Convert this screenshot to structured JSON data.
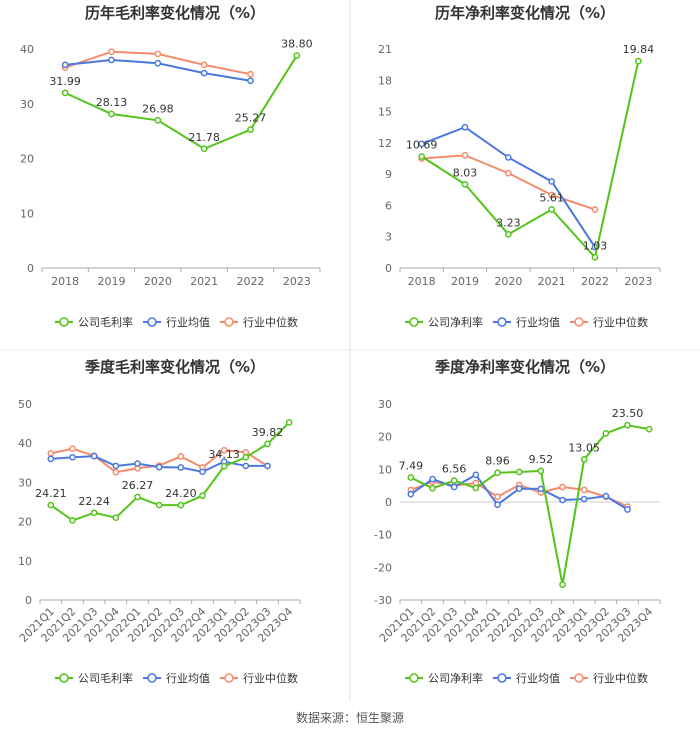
{
  "source": "数据来源：恒生聚源",
  "colors": {
    "company": "#52c41a",
    "avg": "#4a78e0",
    "median": "#f58b6a",
    "axis": "#aaaaaa",
    "divider": "#dddddd"
  },
  "chart_data": [
    {
      "type": "line",
      "title": "历年毛利率变化情况（%）",
      "categories": [
        "2018",
        "2019",
        "2020",
        "2021",
        "2022",
        "2023"
      ],
      "ylim": [
        0,
        40
      ],
      "yticks": [
        0,
        10,
        20,
        30,
        40
      ],
      "series": [
        {
          "name": "公司毛利率",
          "values": [
            31.99,
            28.13,
            26.98,
            21.78,
            25.27,
            38.8
          ]
        },
        {
          "name": "行业均值",
          "values": [
            37.1,
            38.0,
            37.4,
            35.6,
            34.2,
            null
          ]
        },
        {
          "name": "行业中位数",
          "values": [
            36.6,
            39.5,
            39.1,
            37.1,
            35.4,
            null
          ]
        }
      ],
      "labels": [
        "31.99",
        "28.13",
        "26.98",
        "21.78",
        "25.27",
        "38.80"
      ],
      "legend": [
        "公司毛利率",
        "行业均值",
        "行业中位数"
      ]
    },
    {
      "type": "line",
      "title": "历年净利率变化情况（%）",
      "categories": [
        "2018",
        "2019",
        "2020",
        "2021",
        "2022",
        "2023"
      ],
      "ylim": [
        0,
        21
      ],
      "yticks": [
        0,
        3,
        6,
        9,
        12,
        15,
        18,
        21
      ],
      "series": [
        {
          "name": "公司净利率",
          "values": [
            10.69,
            8.03,
            3.23,
            5.61,
            1.03,
            19.84
          ]
        },
        {
          "name": "行业均值",
          "values": [
            11.9,
            13.5,
            10.6,
            8.3,
            2.0,
            null
          ]
        },
        {
          "name": "行业中位数",
          "values": [
            10.5,
            10.8,
            9.1,
            7.0,
            5.6,
            null
          ]
        }
      ],
      "labels": [
        "10.69",
        "8.03",
        "3.23",
        "5.61",
        "1.03",
        "19.84"
      ],
      "legend": [
        "公司净利率",
        "行业均值",
        "行业中位数"
      ]
    },
    {
      "type": "line",
      "title": "季度毛利率变化情况（%）",
      "categories": [
        "2021Q1",
        "2021Q2",
        "2021Q3",
        "2021Q4",
        "2022Q1",
        "2022Q2",
        "2022Q3",
        "2022Q4",
        "2023Q1",
        "2023Q2",
        "2023Q3",
        "2023Q4"
      ],
      "ylim": [
        0,
        50
      ],
      "yticks": [
        0,
        10,
        20,
        30,
        40,
        50
      ],
      "series": [
        {
          "name": "公司毛利率",
          "values": [
            24.21,
            20.3,
            22.24,
            21.0,
            26.27,
            24.2,
            24.2,
            26.6,
            34.13,
            36.4,
            39.82,
            45.3
          ]
        },
        {
          "name": "行业均值",
          "values": [
            36.0,
            36.4,
            36.7,
            34.2,
            34.8,
            33.9,
            33.8,
            32.7,
            35.3,
            34.2,
            34.2,
            null
          ]
        },
        {
          "name": "行业中位数",
          "values": [
            37.4,
            38.6,
            36.8,
            32.6,
            33.6,
            34.3,
            36.6,
            33.8,
            38.2,
            37.7,
            34.2,
            null
          ]
        }
      ],
      "labels": [
        "24.21",
        "",
        "22.24",
        "",
        "26.27",
        "",
        "24.20",
        "",
        "34.13",
        "",
        "39.82",
        ""
      ],
      "legend": [
        "公司毛利率",
        "行业均值",
        "行业中位数"
      ]
    },
    {
      "type": "line",
      "title": "季度净利率变化情况（%）",
      "categories": [
        "2021Q1",
        "2021Q2",
        "2021Q3",
        "2021Q4",
        "2022Q1",
        "2022Q2",
        "2022Q3",
        "2022Q4",
        "2023Q1",
        "2023Q2",
        "2023Q3",
        "2023Q4"
      ],
      "ylim": [
        -30,
        30
      ],
      "yticks": [
        -30,
        -20,
        -10,
        0,
        10,
        20,
        30
      ],
      "series": [
        {
          "name": "公司净利率",
          "values": [
            7.49,
            4.2,
            6.56,
            4.3,
            8.96,
            9.2,
            9.52,
            -25.3,
            13.05,
            21.0,
            23.5,
            22.3
          ]
        },
        {
          "name": "行业均值",
          "values": [
            2.4,
            7.0,
            4.6,
            8.3,
            -0.8,
            4.1,
            4.0,
            0.6,
            0.9,
            1.8,
            -2.3,
            null
          ]
        },
        {
          "name": "行业中位数",
          "values": [
            3.7,
            6.2,
            5.0,
            5.8,
            1.6,
            5.2,
            2.9,
            4.6,
            3.7,
            1.6,
            -1.4,
            null
          ]
        }
      ],
      "labels": [
        "7.49",
        "",
        "6.56",
        "",
        "8.96",
        "",
        "9.52",
        "",
        "13.05",
        "",
        "23.50",
        ""
      ],
      "legend": [
        "公司净利率",
        "行业均值",
        "行业中位数"
      ]
    }
  ]
}
